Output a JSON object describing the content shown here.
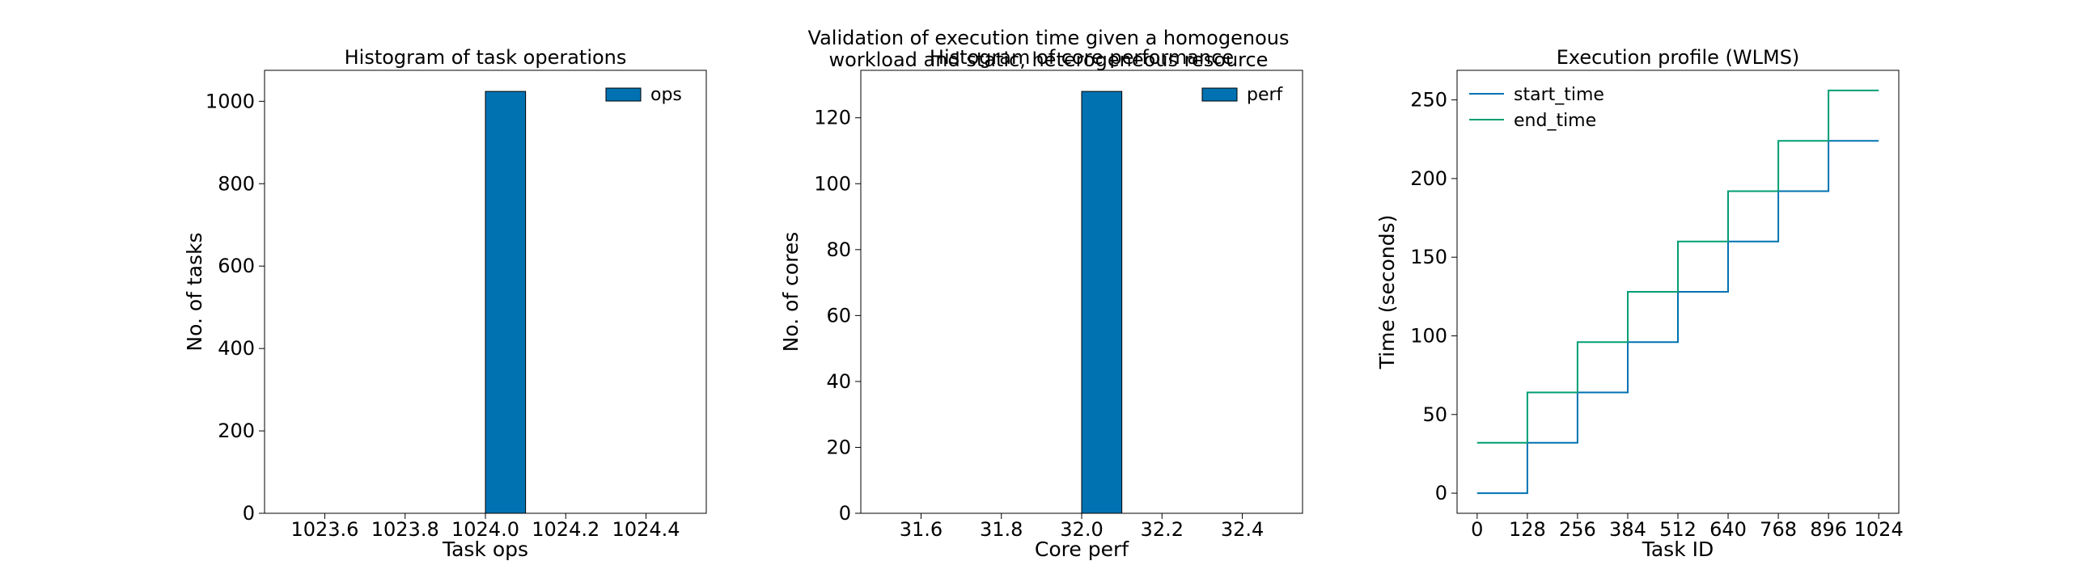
{
  "figure": {
    "suptitle_line1": "Validation of execution time given a homogenous",
    "suptitle_line2": "workload and static, heterogeneous resource"
  },
  "chart_data": [
    {
      "type": "bar",
      "title": "Histogram of task operations",
      "xlabel": "Task ops",
      "ylabel": "No. of tasks",
      "xlim": [
        1023.45,
        1024.55
      ],
      "ylim": [
        0,
        1075.2
      ],
      "xticks": [
        1023.6,
        1023.8,
        1024.0,
        1024.2,
        1024.4
      ],
      "xtick_labels": [
        "1023.6",
        "1023.8",
        "1024.0",
        "1024.2",
        "1024.4"
      ],
      "yticks": [
        0,
        200,
        400,
        600,
        800,
        1000
      ],
      "ytick_labels": [
        "0",
        "200",
        "400",
        "600",
        "800",
        "1000"
      ],
      "bins": [
        {
          "start": 1024.0,
          "end": 1024.1,
          "count": 1024
        }
      ],
      "series": [
        {
          "name": "ops",
          "color": "#0072b2"
        }
      ],
      "legend_position": "upper right",
      "grid": false
    },
    {
      "type": "bar",
      "title": "Histogram of core performance",
      "xlabel": "Core perf",
      "ylabel": "No. of cores",
      "xlim": [
        31.45,
        32.55
      ],
      "ylim": [
        0,
        134.4
      ],
      "xticks": [
        31.6,
        31.8,
        32.0,
        32.2,
        32.4
      ],
      "xtick_labels": [
        "31.6",
        "31.8",
        "32.0",
        "32.2",
        "32.4"
      ],
      "yticks": [
        0,
        20,
        40,
        60,
        80,
        100,
        120
      ],
      "ytick_labels": [
        "0",
        "20",
        "40",
        "60",
        "80",
        "100",
        "120"
      ],
      "bins": [
        {
          "start": 32.0,
          "end": 32.1,
          "count": 128
        }
      ],
      "series": [
        {
          "name": "perf",
          "color": "#0072b2"
        }
      ],
      "legend_position": "upper right",
      "grid": false
    },
    {
      "type": "line",
      "title": "Execution profile (WLMS)",
      "xlabel": "Task ID",
      "ylabel": "Time (seconds)",
      "xlim": [
        -51.2,
        1075.2
      ],
      "ylim": [
        -12.8,
        268.8
      ],
      "xticks": [
        0,
        128,
        256,
        384,
        512,
        640,
        768,
        896,
        1024
      ],
      "xtick_labels": [
        "0",
        "128",
        "256",
        "384",
        "512",
        "640",
        "768",
        "896",
        "1024"
      ],
      "yticks": [
        0,
        50,
        100,
        150,
        200,
        250
      ],
      "ytick_labels": [
        "0",
        "50",
        "100",
        "150",
        "200",
        "250"
      ],
      "series": [
        {
          "name": "start_time",
          "color": "#0072b2",
          "x": [
            0,
            128,
            128,
            256,
            256,
            384,
            384,
            512,
            512,
            640,
            640,
            768,
            768,
            896,
            896,
            1024
          ],
          "y": [
            0,
            0,
            32,
            32,
            64,
            64,
            96,
            96,
            128,
            128,
            160,
            160,
            192,
            192,
            224,
            224
          ]
        },
        {
          "name": "end_time",
          "color": "#009e73",
          "x": [
            0,
            128,
            128,
            256,
            256,
            384,
            384,
            512,
            512,
            640,
            640,
            768,
            768,
            896,
            896,
            1024
          ],
          "y": [
            32,
            32,
            64,
            64,
            96,
            96,
            128,
            128,
            160,
            160,
            192,
            192,
            224,
            224,
            256,
            256
          ]
        }
      ],
      "legend_position": "upper left",
      "grid": false
    }
  ]
}
